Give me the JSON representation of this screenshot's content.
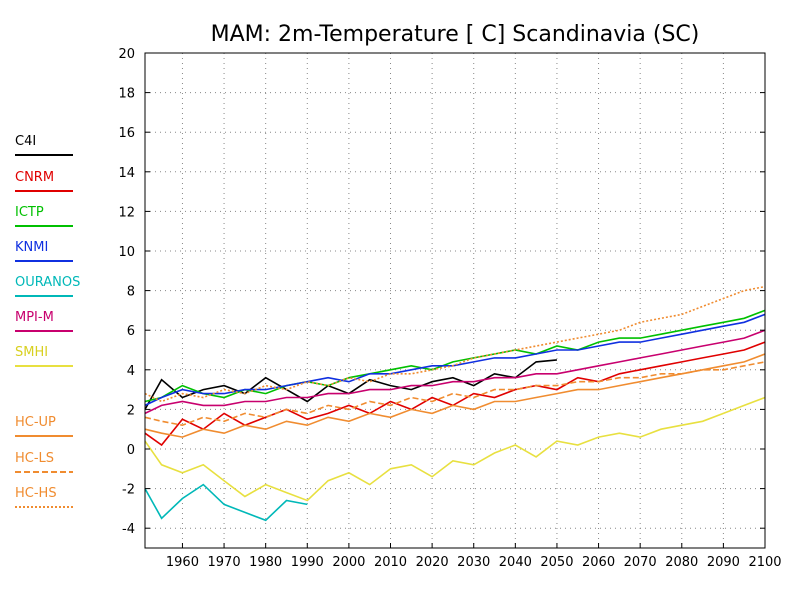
{
  "chart_data": {
    "type": "line",
    "title": "MAM: 2m-Temperature [  C] Scandinavia (SC)",
    "xlabel": "",
    "ylabel": "",
    "xlim": [
      1951,
      2100
    ],
    "ylim": [
      -5,
      20
    ],
    "xticks": [
      1960,
      1970,
      1980,
      1990,
      2000,
      2010,
      2020,
      2030,
      2040,
      2050,
      2060,
      2070,
      2080,
      2090,
      2100
    ],
    "yticks": [
      -4,
      -2,
      0,
      2,
      4,
      6,
      8,
      10,
      12,
      14,
      16,
      18,
      20
    ],
    "grid": true,
    "legend_position": "left",
    "series": [
      {
        "name": "C4I",
        "color": "#000000",
        "dash": "solid",
        "x": [
          1951,
          1955,
          1960,
          1965,
          1970,
          1975,
          1980,
          1985,
          1990,
          1995,
          2000,
          2005,
          2010,
          2015,
          2020,
          2025,
          2030,
          2035,
          2040,
          2045,
          2050
        ],
        "y": [
          2.0,
          3.5,
          2.6,
          3.0,
          3.2,
          2.8,
          3.6,
          3.0,
          2.4,
          3.2,
          2.8,
          3.5,
          3.2,
          3.0,
          3.4,
          3.6,
          3.2,
          3.8,
          3.6,
          4.4,
          4.5
        ]
      },
      {
        "name": "CNRM",
        "color": "#e00000",
        "dash": "solid",
        "x": [
          1951,
          1955,
          1960,
          1965,
          1970,
          1975,
          1980,
          1985,
          1990,
          1995,
          2000,
          2005,
          2010,
          2015,
          2020,
          2025,
          2030,
          2035,
          2040,
          2045,
          2050,
          2055,
          2060,
          2065,
          2070,
          2075,
          2080,
          2085,
          2090,
          2095,
          2100
        ],
        "y": [
          0.8,
          0.2,
          1.5,
          1.0,
          1.8,
          1.2,
          1.6,
          2.0,
          1.5,
          1.8,
          2.2,
          1.8,
          2.4,
          2.0,
          2.6,
          2.2,
          2.8,
          2.6,
          3.0,
          3.2,
          3.0,
          3.6,
          3.4,
          3.8,
          4.0,
          4.2,
          4.4,
          4.6,
          4.8,
          5.0,
          5.4
        ]
      },
      {
        "name": "ICTP",
        "color": "#00c000",
        "dash": "solid",
        "x": [
          1951,
          1955,
          1960,
          1965,
          1970,
          1975,
          1980,
          1985,
          1990,
          1995,
          2000,
          2005,
          2010,
          2015,
          2020,
          2025,
          2030,
          2035,
          2040,
          2045,
          2050,
          2055,
          2060,
          2065,
          2070,
          2075,
          2080,
          2085,
          2090,
          2095,
          2100
        ],
        "y": [
          2.4,
          2.6,
          3.2,
          2.8,
          2.6,
          3.0,
          2.8,
          3.2,
          3.4,
          3.2,
          3.6,
          3.8,
          4.0,
          4.2,
          4.0,
          4.4,
          4.6,
          4.8,
          5.0,
          4.8,
          5.2,
          5.0,
          5.4,
          5.6,
          5.6,
          5.8,
          6.0,
          6.2,
          6.4,
          6.6,
          7.0
        ]
      },
      {
        "name": "KNMI",
        "color": "#1030e0",
        "dash": "solid",
        "x": [
          1951,
          1955,
          1960,
          1965,
          1970,
          1975,
          1980,
          1985,
          1990,
          1995,
          2000,
          2005,
          2010,
          2015,
          2020,
          2025,
          2030,
          2035,
          2040,
          2045,
          2050,
          2055,
          2060,
          2065,
          2070,
          2075,
          2080,
          2085,
          2090,
          2095,
          2100
        ],
        "y": [
          2.2,
          2.6,
          3.0,
          2.8,
          2.8,
          3.0,
          3.0,
          3.2,
          3.4,
          3.6,
          3.4,
          3.8,
          3.8,
          4.0,
          4.2,
          4.2,
          4.4,
          4.6,
          4.6,
          4.8,
          5.0,
          5.0,
          5.2,
          5.4,
          5.4,
          5.6,
          5.8,
          6.0,
          6.2,
          6.4,
          6.8
        ]
      },
      {
        "name": "OURANOS",
        "color": "#00b8b8",
        "dash": "solid",
        "x": [
          1951,
          1955,
          1960,
          1965,
          1970,
          1975,
          1980,
          1985,
          1990
        ],
        "y": [
          -2.0,
          -3.5,
          -2.5,
          -1.8,
          -2.8,
          -3.2,
          -3.6,
          -2.6,
          -2.8
        ]
      },
      {
        "name": "MPI-M",
        "color": "#c8006e",
        "dash": "solid",
        "x": [
          1951,
          1955,
          1960,
          1965,
          1970,
          1975,
          1980,
          1985,
          1990,
          1995,
          2000,
          2005,
          2010,
          2015,
          2020,
          2025,
          2030,
          2035,
          2040,
          2045,
          2050,
          2055,
          2060,
          2065,
          2070,
          2075,
          2080,
          2085,
          2090,
          2095,
          2100
        ],
        "y": [
          1.8,
          2.2,
          2.4,
          2.2,
          2.2,
          2.4,
          2.4,
          2.6,
          2.6,
          2.8,
          2.8,
          3.0,
          3.0,
          3.2,
          3.2,
          3.4,
          3.4,
          3.6,
          3.6,
          3.8,
          3.8,
          4.0,
          4.2,
          4.4,
          4.6,
          4.8,
          5.0,
          5.2,
          5.4,
          5.6,
          6.0
        ]
      },
      {
        "name": "SMHI",
        "color": "#e8e040",
        "dash": "solid",
        "x": [
          1951,
          1955,
          1960,
          1965,
          1970,
          1975,
          1980,
          1985,
          1990,
          1995,
          2000,
          2005,
          2010,
          2015,
          2020,
          2025,
          2030,
          2035,
          2040,
          2045,
          2050,
          2055,
          2060,
          2065,
          2070,
          2075,
          2080,
          2085,
          2090,
          2095,
          2100
        ],
        "y": [
          0.4,
          -0.8,
          -1.2,
          -0.8,
          -1.6,
          -2.4,
          -1.8,
          -2.2,
          -2.6,
          -1.6,
          -1.2,
          -1.8,
          -1.0,
          -0.8,
          -1.4,
          -0.6,
          -0.8,
          -0.2,
          0.2,
          -0.4,
          0.4,
          0.2,
          0.6,
          0.8,
          0.6,
          1.0,
          1.2,
          1.4,
          1.8,
          2.2,
          2.6
        ]
      },
      {
        "name": "HC-UP",
        "color": "#f08c30",
        "dash": "solid",
        "x": [
          1951,
          1955,
          1960,
          1965,
          1970,
          1975,
          1980,
          1985,
          1990,
          1995,
          2000,
          2005,
          2010,
          2015,
          2020,
          2025,
          2030,
          2035,
          2040,
          2045,
          2050,
          2055,
          2060,
          2065,
          2070,
          2075,
          2080,
          2085,
          2090,
          2095,
          2100
        ],
        "y": [
          1.0,
          0.8,
          0.6,
          1.0,
          0.8,
          1.2,
          1.0,
          1.4,
          1.2,
          1.6,
          1.4,
          1.8,
          1.6,
          2.0,
          1.8,
          2.2,
          2.0,
          2.4,
          2.4,
          2.6,
          2.8,
          3.0,
          3.0,
          3.2,
          3.4,
          3.6,
          3.8,
          4.0,
          4.2,
          4.4,
          4.8
        ]
      },
      {
        "name": "HC-LS",
        "color": "#f08c30",
        "dash": "dash",
        "x": [
          1951,
          1955,
          1960,
          1965,
          1970,
          1975,
          1980,
          1985,
          1990,
          1995,
          2000,
          2005,
          2010,
          2015,
          2020,
          2025,
          2030,
          2035,
          2040,
          2045,
          2050,
          2055,
          2060,
          2065,
          2070,
          2075,
          2080,
          2085,
          2090,
          2095,
          2100
        ],
        "y": [
          1.6,
          1.4,
          1.2,
          1.6,
          1.4,
          1.8,
          1.6,
          2.0,
          1.8,
          2.2,
          2.0,
          2.4,
          2.2,
          2.6,
          2.4,
          2.8,
          2.6,
          3.0,
          3.0,
          3.2,
          3.2,
          3.4,
          3.4,
          3.6,
          3.6,
          3.8,
          3.8,
          4.0,
          4.0,
          4.2,
          4.4
        ]
      },
      {
        "name": "HC-HS",
        "color": "#f08c30",
        "dash": "dot",
        "x": [
          1951,
          1955,
          1960,
          1965,
          1970,
          1975,
          1980,
          1985,
          1990,
          1995,
          2000,
          2005,
          2010,
          2015,
          2020,
          2025,
          2030,
          2035,
          2040,
          2045,
          2050,
          2055,
          2060,
          2065,
          2070,
          2075,
          2080,
          2085,
          2090,
          2095,
          2100
        ],
        "y": [
          2.8,
          2.4,
          2.8,
          2.6,
          3.0,
          2.8,
          3.2,
          3.0,
          3.4,
          3.2,
          3.6,
          3.4,
          3.8,
          3.8,
          4.0,
          4.2,
          4.6,
          4.8,
          5.0,
          5.2,
          5.4,
          5.6,
          5.8,
          6.0,
          6.4,
          6.6,
          6.8,
          7.2,
          7.6,
          8.0,
          8.2
        ]
      }
    ]
  }
}
